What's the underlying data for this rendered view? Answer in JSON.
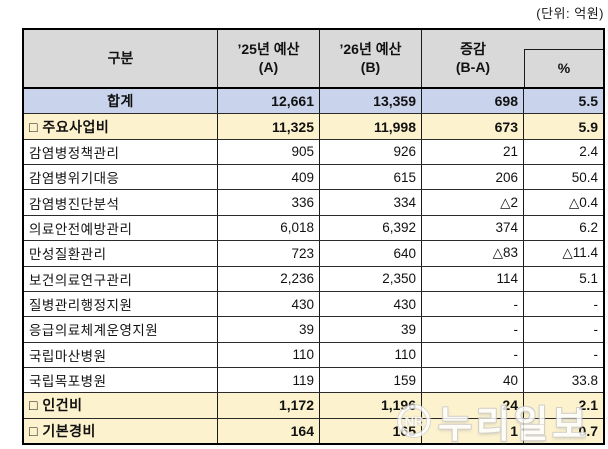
{
  "unit_label": "(단위: 억원)",
  "table": {
    "header": {
      "col_category": "구분",
      "col_budget25_line1": "’25년 예산",
      "col_budget25_line2": "(A)",
      "col_budget26_line1": "’26년 예산",
      "col_budget26_line2": "(B)",
      "col_change_line1": "증감",
      "col_change_line2": "(B-A)",
      "col_percent": "%"
    },
    "rows": [
      {
        "type": "total",
        "label": "합계",
        "budget25": "12,661",
        "budget26": "13,359",
        "change": "698",
        "percent": "5.5"
      },
      {
        "type": "section",
        "label": "□ 주요사업비",
        "budget25": "11,325",
        "budget26": "11,998",
        "change": "673",
        "percent": "5.9"
      },
      {
        "type": "item",
        "label": "감염병정책관리",
        "budget25": "905",
        "budget26": "926",
        "change": "21",
        "percent": "2.4"
      },
      {
        "type": "item",
        "label": "감염병위기대응",
        "budget25": "409",
        "budget26": "615",
        "change": "206",
        "percent": "50.4"
      },
      {
        "type": "item",
        "label": "감염병진단분석",
        "budget25": "336",
        "budget26": "334",
        "change": "△2",
        "percent": "△0.4"
      },
      {
        "type": "item",
        "label": "의료안전예방관리",
        "budget25": "6,018",
        "budget26": "6,392",
        "change": "374",
        "percent": "6.2"
      },
      {
        "type": "item",
        "label": "만성질환관리",
        "budget25": "723",
        "budget26": "640",
        "change": "△83",
        "percent": "△11.4"
      },
      {
        "type": "item",
        "label": "보건의료연구관리",
        "budget25": "2,236",
        "budget26": "2,350",
        "change": "114",
        "percent": "5.1"
      },
      {
        "type": "item",
        "label": "질병관리행정지원",
        "budget25": "430",
        "budget26": "430",
        "change": "-",
        "percent": "-"
      },
      {
        "type": "item",
        "label": "응급의료체계운영지원",
        "budget25": "39",
        "budget26": "39",
        "change": "-",
        "percent": "-"
      },
      {
        "type": "item",
        "label": "국립마산병원",
        "budget25": "110",
        "budget26": "110",
        "change": "-",
        "percent": "-"
      },
      {
        "type": "item",
        "label": "국립목포병원",
        "budget25": "119",
        "budget26": "159",
        "change": "40",
        "percent": "33.8"
      },
      {
        "type": "section",
        "label": "□ 인건비",
        "budget25": "1,172",
        "budget26": "1,196",
        "change": "24",
        "percent": "2.1"
      },
      {
        "type": "section",
        "label": "□ 기본경비",
        "budget25": "164",
        "budget26": "165",
        "change": "1",
        "percent": "0.7"
      }
    ]
  },
  "watermark": {
    "badge": "NR",
    "text": "누리일보"
  },
  "colors": {
    "header_bg": "#d9d9d9",
    "total_row_bg": "#c9d4ec",
    "section_row_bg": "#fcf2cd",
    "border": "#000000"
  }
}
